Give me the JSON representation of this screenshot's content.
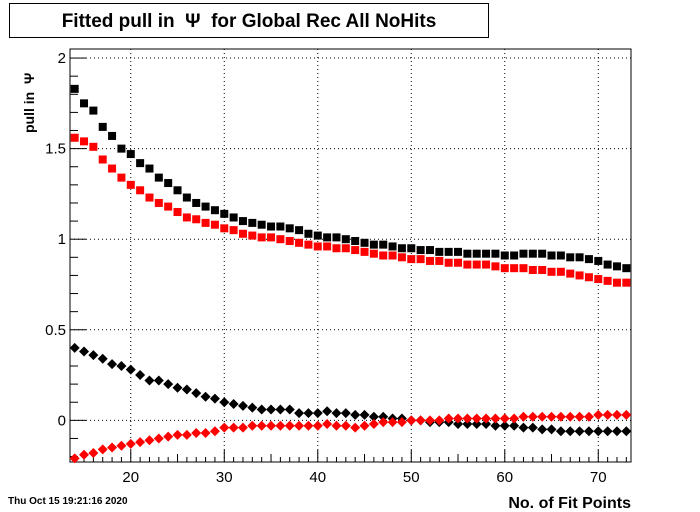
{
  "title": "Fitted pull in  Ψ  for Global Rec All NoHits",
  "timestamp": "Thu Oct 15 19:21:16 2020",
  "chart_data": {
    "type": "scatter",
    "title": "Fitted pull in  Ψ  for Global Rec All NoHits",
    "xlabel": "No. of Fit Points",
    "ylabel": "pull in  Ψ",
    "xlim": [
      13.5,
      73.5
    ],
    "ylim": [
      -0.23,
      2.05
    ],
    "xticks": [
      20,
      30,
      40,
      50,
      60,
      70
    ],
    "yticks": [
      0,
      0.5,
      1,
      1.5,
      2
    ],
    "ytick_labels": [
      "0",
      "0.5",
      "1",
      "1.5",
      "2"
    ],
    "grid": true,
    "x": [
      14,
      15,
      16,
      17,
      18,
      19,
      20,
      21,
      22,
      23,
      24,
      25,
      26,
      27,
      28,
      29,
      30,
      31,
      32,
      33,
      34,
      35,
      36,
      37,
      38,
      39,
      40,
      41,
      42,
      43,
      44,
      45,
      46,
      47,
      48,
      49,
      50,
      51,
      52,
      53,
      54,
      55,
      56,
      57,
      58,
      59,
      60,
      61,
      62,
      63,
      64,
      65,
      66,
      67,
      68,
      69,
      70,
      71,
      72,
      73
    ],
    "series": [
      {
        "color": "#000000",
        "marker": "square",
        "values": [
          1.83,
          1.75,
          1.71,
          1.62,
          1.57,
          1.5,
          1.47,
          1.42,
          1.39,
          1.34,
          1.31,
          1.27,
          1.23,
          1.2,
          1.18,
          1.16,
          1.14,
          1.12,
          1.1,
          1.09,
          1.08,
          1.07,
          1.07,
          1.06,
          1.05,
          1.03,
          1.02,
          1.01,
          1.01,
          1.0,
          0.99,
          0.98,
          0.97,
          0.97,
          0.96,
          0.95,
          0.95,
          0.94,
          0.94,
          0.93,
          0.93,
          0.93,
          0.92,
          0.92,
          0.92,
          0.92,
          0.91,
          0.91,
          0.92,
          0.92,
          0.92,
          0.91,
          0.91,
          0.9,
          0.9,
          0.89,
          0.88,
          0.86,
          0.85,
          0.84
        ]
      },
      {
        "color": "#ff0000",
        "marker": "square",
        "values": [
          1.56,
          1.54,
          1.51,
          1.44,
          1.39,
          1.34,
          1.3,
          1.27,
          1.23,
          1.2,
          1.18,
          1.15,
          1.12,
          1.11,
          1.09,
          1.08,
          1.06,
          1.05,
          1.03,
          1.02,
          1.01,
          1.01,
          1.0,
          0.99,
          0.98,
          0.97,
          0.96,
          0.96,
          0.95,
          0.95,
          0.94,
          0.93,
          0.92,
          0.91,
          0.91,
          0.9,
          0.89,
          0.89,
          0.88,
          0.88,
          0.87,
          0.87,
          0.86,
          0.86,
          0.86,
          0.85,
          0.84,
          0.84,
          0.84,
          0.83,
          0.83,
          0.82,
          0.82,
          0.81,
          0.8,
          0.79,
          0.78,
          0.77,
          0.76,
          0.76
        ]
      },
      {
        "color": "#000000",
        "marker": "diamond",
        "values": [
          0.4,
          0.38,
          0.36,
          0.34,
          0.31,
          0.3,
          0.28,
          0.25,
          0.22,
          0.22,
          0.2,
          0.18,
          0.17,
          0.15,
          0.13,
          0.12,
          0.1,
          0.09,
          0.08,
          0.07,
          0.06,
          0.06,
          0.06,
          0.06,
          0.04,
          0.04,
          0.04,
          0.05,
          0.04,
          0.04,
          0.03,
          0.03,
          0.02,
          0.02,
          0.01,
          0.01,
          0.0,
          0.0,
          -0.01,
          -0.01,
          -0.01,
          -0.02,
          -0.02,
          -0.02,
          -0.02,
          -0.03,
          -0.03,
          -0.03,
          -0.04,
          -0.04,
          -0.05,
          -0.05,
          -0.06,
          -0.06,
          -0.06,
          -0.06,
          -0.06,
          -0.06,
          -0.06,
          -0.06
        ]
      },
      {
        "color": "#ff0000",
        "marker": "diamond",
        "values": [
          -0.21,
          -0.19,
          -0.18,
          -0.16,
          -0.15,
          -0.14,
          -0.13,
          -0.12,
          -0.11,
          -0.1,
          -0.09,
          -0.08,
          -0.08,
          -0.07,
          -0.07,
          -0.06,
          -0.04,
          -0.04,
          -0.04,
          -0.03,
          -0.03,
          -0.03,
          -0.03,
          -0.03,
          -0.03,
          -0.03,
          -0.03,
          -0.02,
          -0.03,
          -0.03,
          -0.04,
          -0.03,
          -0.02,
          -0.01,
          -0.01,
          -0.01,
          0.0,
          0.0,
          0.0,
          0.0,
          0.01,
          0.01,
          0.01,
          0.01,
          0.01,
          0.01,
          0.01,
          0.01,
          0.02,
          0.02,
          0.02,
          0.02,
          0.02,
          0.02,
          0.02,
          0.02,
          0.03,
          0.03,
          0.03,
          0.03
        ]
      }
    ]
  }
}
